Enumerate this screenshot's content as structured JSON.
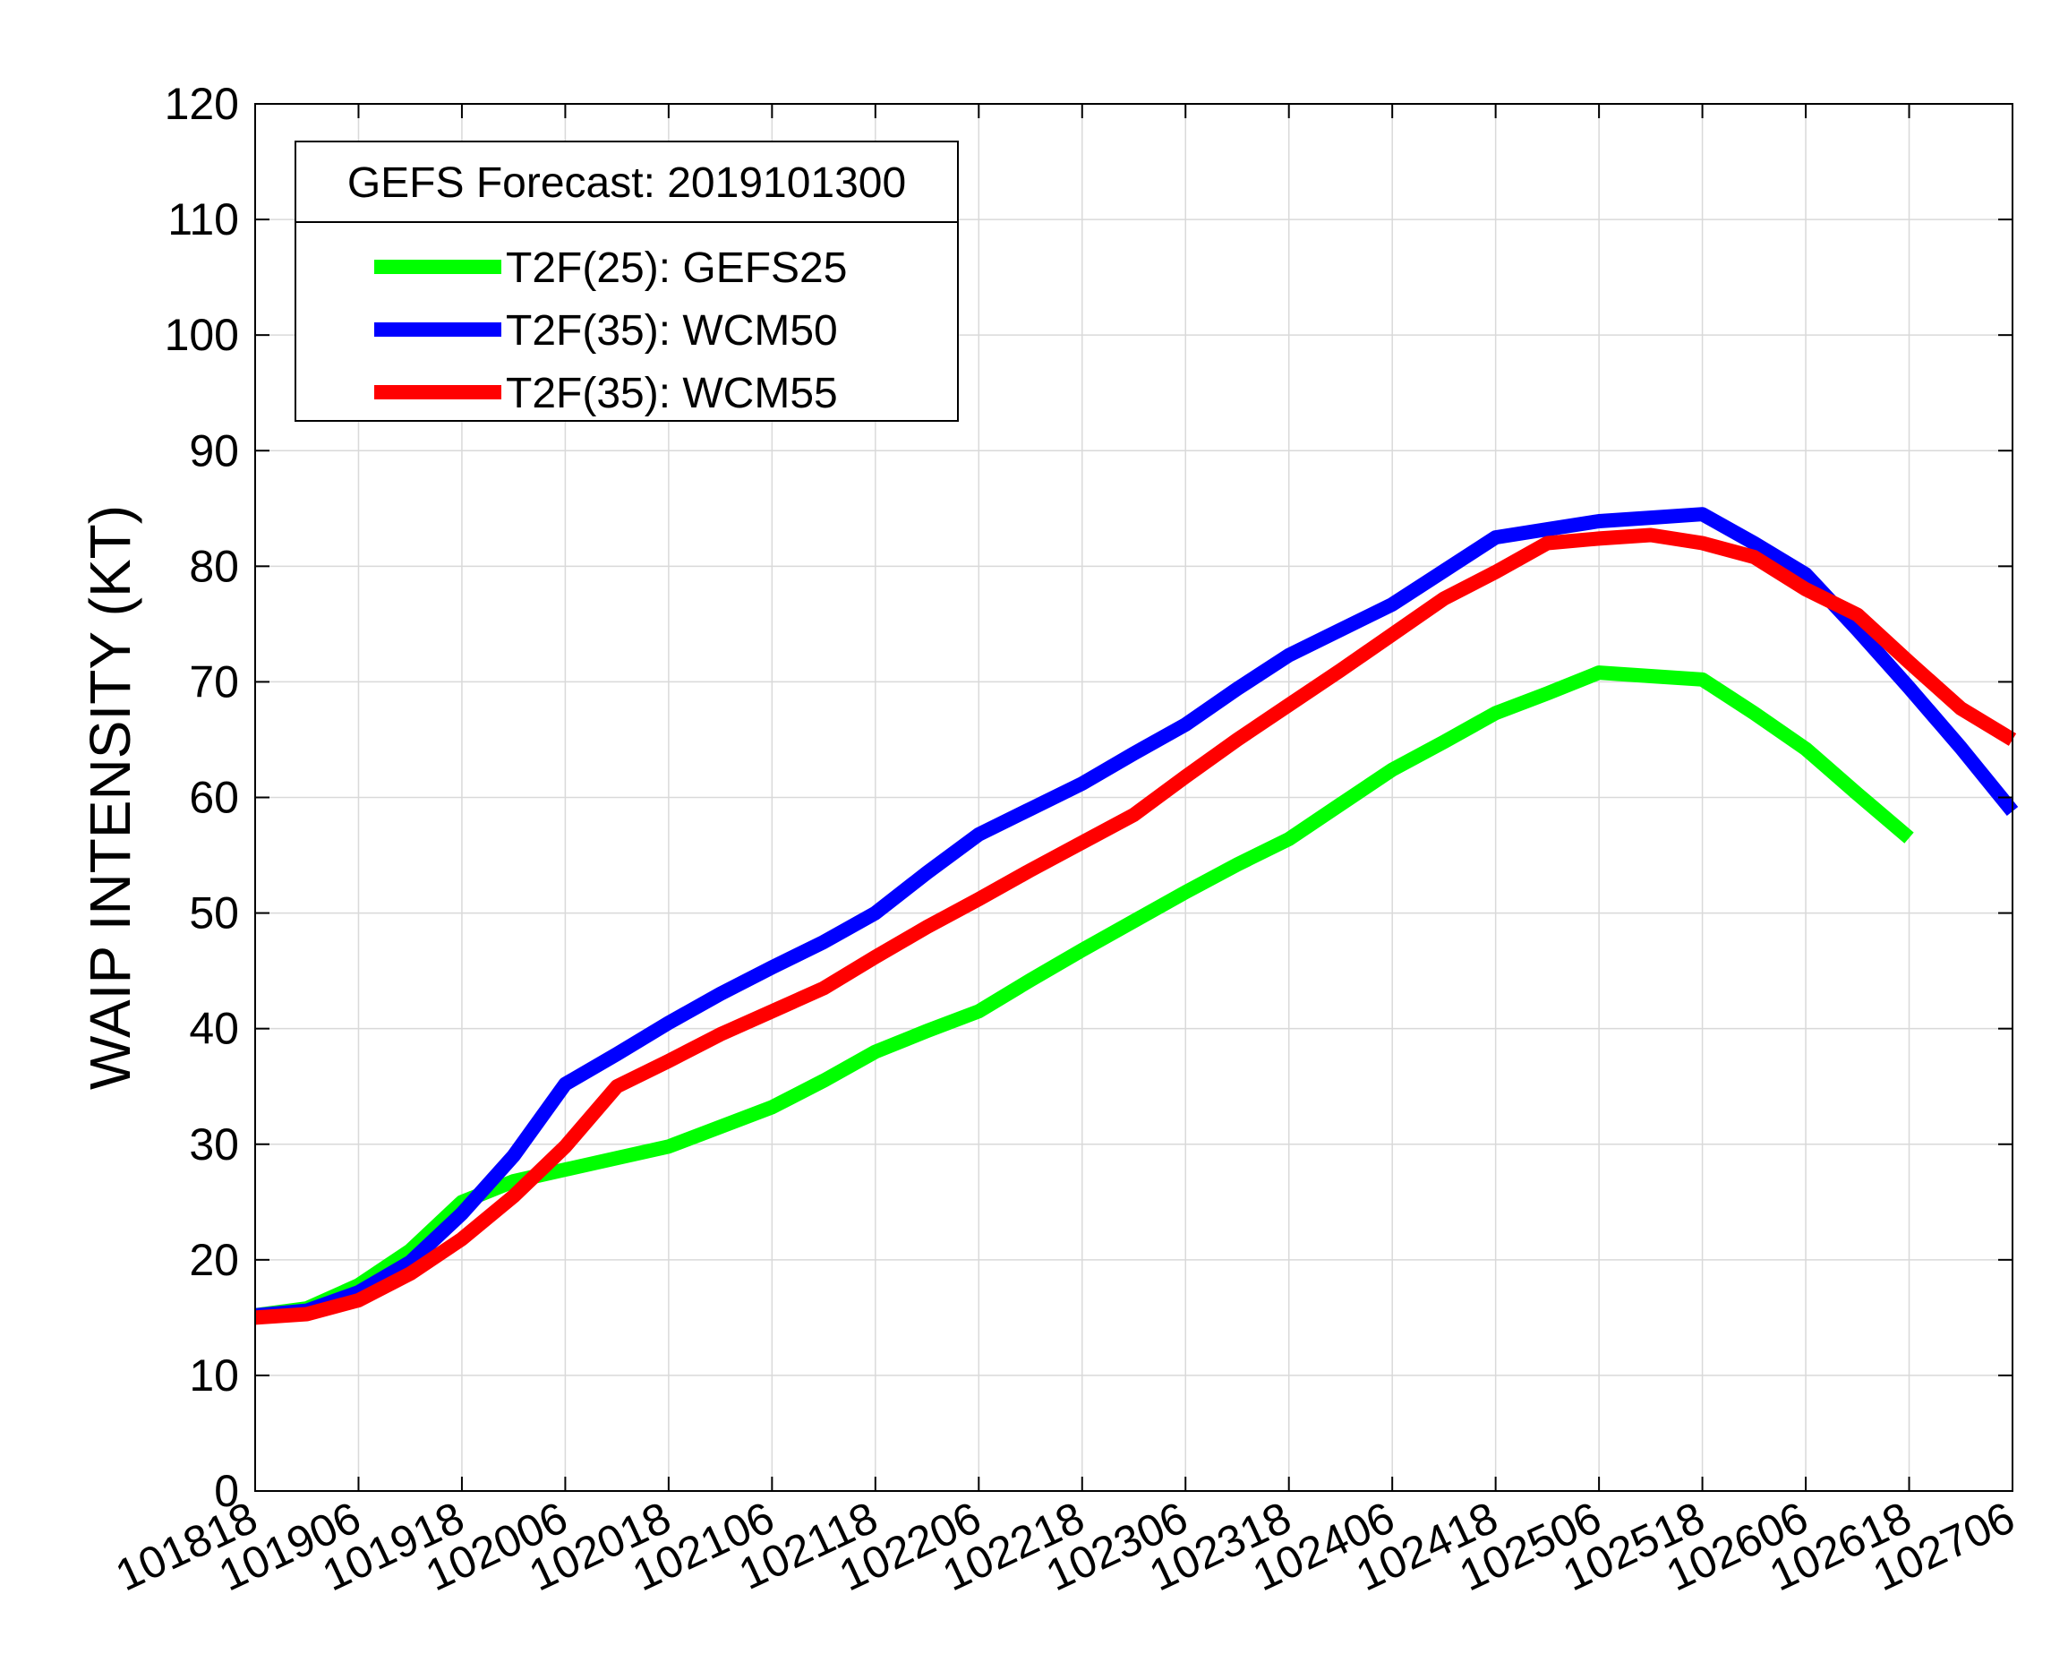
{
  "chart_data": {
    "type": "line",
    "title": "",
    "xlabel": "",
    "ylabel": "WAIP INTENSITY (KT)",
    "ylim": [
      0,
      120
    ],
    "yticks": [
      0,
      10,
      20,
      30,
      40,
      50,
      60,
      70,
      80,
      90,
      100,
      110,
      120
    ],
    "xlim": [
      0,
      34
    ],
    "categories": [
      "101818",
      "101906",
      "101918",
      "102006",
      "102018",
      "102106",
      "102118",
      "102206",
      "102218",
      "102306",
      "102318",
      "102406",
      "102418",
      "102506",
      "102518",
      "102606",
      "102618",
      "102706"
    ],
    "x_step": 2,
    "grid": true,
    "legend": {
      "title": "GEFS Forecast: 2019101300",
      "position": "top-left"
    },
    "series": [
      {
        "name": "T2F(25): GEFS25",
        "color": "#00ff00",
        "x": [
          0,
          1,
          2,
          3,
          4,
          5,
          6,
          7,
          8,
          9,
          10,
          11,
          12,
          13,
          14,
          15,
          16,
          17,
          18,
          19,
          20,
          21,
          22,
          23,
          24,
          25,
          26,
          27,
          28,
          29,
          30,
          31,
          32
        ],
        "values": [
          15.2,
          15.8,
          17.8,
          20.8,
          25.0,
          26.8,
          27.8,
          28.8,
          29.8,
          31.5,
          33.2,
          35.5,
          38.0,
          39.8,
          41.5,
          44.2,
          46.8,
          49.3,
          51.8,
          54.2,
          56.4,
          59.4,
          62.4,
          64.8,
          67.3,
          69.0,
          70.8,
          70.5,
          70.2,
          67.3,
          64.2,
          60.3,
          56.5
        ]
      },
      {
        "name": "T2F(35): WCM50",
        "color": "#0000ff",
        "x": [
          0,
          1,
          2,
          3,
          4,
          5,
          6,
          7,
          8,
          9,
          10,
          11,
          12,
          13,
          14,
          15,
          16,
          17,
          18,
          19,
          20,
          21,
          22,
          23,
          24,
          25,
          26,
          27,
          28,
          29,
          30,
          31,
          32,
          33,
          34
        ],
        "values": [
          15.2,
          15.6,
          17.2,
          19.8,
          24.0,
          29.0,
          35.2,
          37.8,
          40.5,
          43.0,
          45.3,
          47.5,
          50.0,
          53.5,
          56.8,
          59.0,
          61.2,
          63.8,
          66.3,
          69.4,
          72.3,
          74.5,
          76.7,
          79.6,
          82.5,
          83.2,
          83.9,
          84.2,
          84.5,
          82.0,
          79.3,
          74.5,
          69.5,
          64.3,
          58.8
        ]
      },
      {
        "name": "T2F(35): WCM55",
        "color": "#ff0000",
        "x": [
          0,
          1,
          2,
          3,
          4,
          5,
          6,
          7,
          8,
          9,
          10,
          11,
          12,
          13,
          14,
          15,
          16,
          17,
          18,
          19,
          20,
          21,
          22,
          23,
          24,
          25,
          26,
          27,
          28,
          29,
          30,
          31,
          32,
          33,
          34
        ],
        "values": [
          15.0,
          15.3,
          16.5,
          18.8,
          21.8,
          25.5,
          29.8,
          35.0,
          37.2,
          39.5,
          41.5,
          43.5,
          46.2,
          48.8,
          51.2,
          53.7,
          56.1,
          58.5,
          61.8,
          65.0,
          68.0,
          71.0,
          74.1,
          77.2,
          79.5,
          82.0,
          82.4,
          82.7,
          82.0,
          80.8,
          78.0,
          75.8,
          71.7,
          67.7,
          65.0
        ]
      }
    ]
  }
}
